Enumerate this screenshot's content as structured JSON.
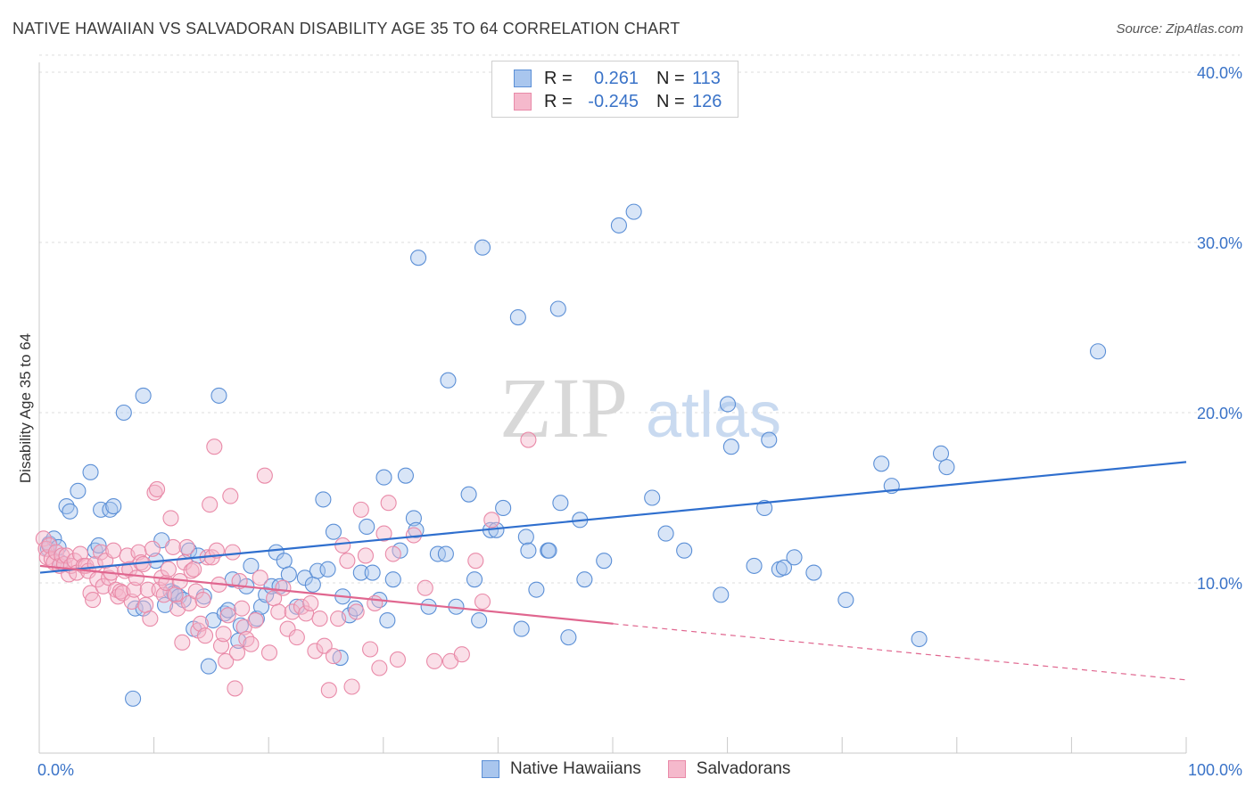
{
  "title": "NATIVE HAWAIIAN VS SALVADORAN DISABILITY AGE 35 TO 64 CORRELATION CHART",
  "source": "Source: ZipAtlas.com",
  "watermark": {
    "zip": "ZIP",
    "atlas": "atlas"
  },
  "legend_top": {
    "rows": [
      {
        "r_label": "R =",
        "r_value": "0.261",
        "n_label": "N =",
        "n_value": "113"
      },
      {
        "r_label": "R =",
        "r_value": "-0.245",
        "n_label": "N =",
        "n_value": "126"
      }
    ]
  },
  "legend_bottom": {
    "series1": "Native Hawaiians",
    "series2": "Salvadorans"
  },
  "colors": {
    "blue_fill": "#a9c6ee",
    "blue_stroke": "#5b8fd6",
    "blue_line": "#2f6fce",
    "pink_fill": "#f5b9cc",
    "pink_stroke": "#e98aa8",
    "pink_line": "#e0668f",
    "axis_text_blue": "#3a73c8",
    "grid": "#dddddd"
  },
  "chart_data": {
    "type": "scatter",
    "title": "NATIVE HAWAIIAN VS SALVADORAN DISABILITY AGE 35 TO 64 CORRELATION CHART",
    "xlabel": "",
    "ylabel": "Disability Age 35 to 64",
    "xlim": [
      0,
      100
    ],
    "ylim": [
      0,
      42
    ],
    "x_tick_labels": [
      "0.0%",
      "100.0%"
    ],
    "y_ticks": [
      10,
      20,
      30,
      40
    ],
    "y_tick_labels": [
      "10.0%",
      "20.0%",
      "30.0%",
      "40.0%"
    ],
    "series": [
      {
        "name": "Native Hawaiians",
        "r": 0.261,
        "n": 113,
        "trend": {
          "x0": 0,
          "y0": 10.6,
          "x1": 100,
          "y1": 17.1
        },
        "points": [
          [
            0.7,
            12
          ],
          [
            0.8,
            12.3
          ],
          [
            1.2,
            12.6
          ],
          [
            1.6,
            12.1
          ],
          [
            1.8,
            11.2
          ],
          [
            2.3,
            14.5
          ],
          [
            2.6,
            14.2
          ],
          [
            3.3,
            15.4
          ],
          [
            4.4,
            16.5
          ],
          [
            4.8,
            11.9
          ],
          [
            5.1,
            12.2
          ],
          [
            5.3,
            14.3
          ],
          [
            6.1,
            14.3
          ],
          [
            6.4,
            14.5
          ],
          [
            7.3,
            20
          ],
          [
            8.1,
            3.2
          ],
          [
            8.3,
            8.5
          ],
          [
            9.0,
            21
          ],
          [
            9.0,
            8.5
          ],
          [
            10.1,
            11.3
          ],
          [
            10.6,
            12.5
          ],
          [
            10.9,
            8.7
          ],
          [
            11.4,
            9.5
          ],
          [
            11.7,
            9.4
          ],
          [
            12.1,
            9.2
          ],
          [
            12.5,
            9.0
          ],
          [
            13,
            11.9
          ],
          [
            13.4,
            7.3
          ],
          [
            13.8,
            11.6
          ],
          [
            14.3,
            9.2
          ],
          [
            14.7,
            5.1
          ],
          [
            15.1,
            7.8
          ],
          [
            15.6,
            21
          ],
          [
            16.1,
            8.2
          ],
          [
            16.4,
            8.4
          ],
          [
            16.8,
            10.2
          ],
          [
            17.3,
            6.6
          ],
          [
            17.5,
            7.5
          ],
          [
            18,
            9.8
          ],
          [
            18.4,
            11.0
          ],
          [
            18.9,
            7.9
          ],
          [
            19.3,
            8.6
          ],
          [
            19.7,
            9.3
          ],
          [
            20.2,
            9.8
          ],
          [
            20.6,
            11.8
          ],
          [
            20.9,
            9.8
          ],
          [
            21.3,
            11.3
          ],
          [
            21.7,
            10.5
          ],
          [
            22.4,
            8.6
          ],
          [
            23.1,
            10.3
          ],
          [
            23.8,
            9.9
          ],
          [
            24.2,
            10.7
          ],
          [
            24.7,
            14.9
          ],
          [
            25.1,
            10.8
          ],
          [
            25.6,
            13.0
          ],
          [
            26.2,
            5.6
          ],
          [
            26.4,
            9.2
          ],
          [
            27.0,
            8.1
          ],
          [
            27.5,
            8.5
          ],
          [
            28.0,
            10.6
          ],
          [
            28.5,
            13.3
          ],
          [
            29.0,
            10.6
          ],
          [
            29.6,
            9.0
          ],
          [
            30.0,
            16.2
          ],
          [
            30.3,
            7.8
          ],
          [
            30.8,
            10.2
          ],
          [
            31.4,
            11.9
          ],
          [
            31.9,
            16.3
          ],
          [
            32.6,
            13.8
          ],
          [
            32.8,
            13.1
          ],
          [
            33.0,
            29.1
          ],
          [
            33.9,
            8.6
          ],
          [
            34.7,
            11.7
          ],
          [
            35.4,
            11.7
          ],
          [
            35.6,
            21.9
          ],
          [
            36.3,
            8.6
          ],
          [
            37.4,
            15.2
          ],
          [
            37.9,
            10.2
          ],
          [
            38.3,
            7.8
          ],
          [
            38.6,
            29.7
          ],
          [
            39.3,
            13.1
          ],
          [
            39.8,
            13.1
          ],
          [
            40.4,
            14.4
          ],
          [
            41.7,
            25.6
          ],
          [
            42.0,
            7.3
          ],
          [
            42.4,
            12.7
          ],
          [
            42.6,
            11.9
          ],
          [
            43.3,
            9.6
          ],
          [
            44.3,
            11.9
          ],
          [
            44.4,
            11.9
          ],
          [
            45.2,
            26.1
          ],
          [
            45.4,
            14.7
          ],
          [
            46.1,
            6.8
          ],
          [
            47.1,
            13.7
          ],
          [
            47.5,
            10.2
          ],
          [
            49.2,
            11.3
          ],
          [
            50.5,
            31.0
          ],
          [
            51.8,
            31.8
          ],
          [
            53.4,
            15.0
          ],
          [
            54.6,
            12.9
          ],
          [
            56.2,
            11.9
          ],
          [
            59.4,
            9.3
          ],
          [
            60.0,
            20.5
          ],
          [
            60.3,
            18.0
          ],
          [
            62.3,
            11.0
          ],
          [
            63.2,
            14.4
          ],
          [
            63.6,
            18.4
          ],
          [
            64.5,
            10.8
          ],
          [
            64.9,
            10.9
          ],
          [
            65.8,
            11.5
          ],
          [
            67.5,
            10.6
          ],
          [
            70.3,
            9.0
          ],
          [
            73.4,
            17.0
          ],
          [
            74.3,
            15.7
          ],
          [
            76.7,
            6.7
          ],
          [
            78.6,
            17.6
          ],
          [
            79.1,
            16.8
          ],
          [
            92.3,
            23.6
          ]
        ]
      },
      {
        "name": "Salvadorans",
        "r": -0.245,
        "n": 126,
        "trend": {
          "x0": 0,
          "y0": 11.0,
          "x1": 50,
          "y1": 7.6
        },
        "trend_dashed_extension": {
          "x0": 50,
          "y0": 7.6,
          "x1": 100,
          "y1": 4.3
        },
        "points": [
          [
            0.3,
            12.6
          ],
          [
            0.5,
            12.0
          ],
          [
            0.6,
            11.5
          ],
          [
            0.8,
            12.2
          ],
          [
            1.0,
            11.4
          ],
          [
            1.2,
            11.2
          ],
          [
            1.4,
            11.8
          ],
          [
            1.7,
            11.0
          ],
          [
            1.9,
            11.6
          ],
          [
            2.1,
            11.1
          ],
          [
            2.3,
            11.6
          ],
          [
            2.5,
            10.5
          ],
          [
            2.7,
            11.0
          ],
          [
            3.0,
            11.3
          ],
          [
            3.2,
            10.6
          ],
          [
            3.5,
            11.7
          ],
          [
            3.8,
            11.0
          ],
          [
            4.0,
            11.0
          ],
          [
            4.2,
            10.7
          ],
          [
            4.4,
            9.4
          ],
          [
            4.6,
            9.0
          ],
          [
            4.8,
            11.1
          ],
          [
            5.0,
            10.2
          ],
          [
            5.3,
            11.8
          ],
          [
            5.5,
            9.8
          ],
          [
            5.7,
            11.3
          ],
          [
            6.0,
            10.3
          ],
          [
            6.2,
            10.6
          ],
          [
            6.4,
            11.9
          ],
          [
            6.6,
            9.6
          ],
          [
            6.8,
            9.2
          ],
          [
            7.0,
            9.5
          ],
          [
            7.2,
            9.4
          ],
          [
            7.4,
            10.7
          ],
          [
            7.6,
            11.6
          ],
          [
            7.8,
            10.8
          ],
          [
            8.0,
            8.9
          ],
          [
            8.2,
            9.6
          ],
          [
            8.4,
            10.3
          ],
          [
            8.6,
            11.8
          ],
          [
            8.8,
            11.2
          ],
          [
            9.0,
            11.1
          ],
          [
            9.2,
            8.7
          ],
          [
            9.4,
            9.6
          ],
          [
            9.6,
            7.9
          ],
          [
            9.8,
            12.0
          ],
          [
            10.0,
            15.3
          ],
          [
            10.2,
            15.5
          ],
          [
            10.4,
            9.6
          ],
          [
            10.6,
            10.3
          ],
          [
            10.8,
            9.3
          ],
          [
            11.0,
            10.0
          ],
          [
            11.2,
            10.8
          ],
          [
            11.4,
            13.8
          ],
          [
            11.6,
            12.1
          ],
          [
            11.8,
            9.3
          ],
          [
            12.0,
            8.5
          ],
          [
            12.2,
            10.1
          ],
          [
            12.4,
            6.5
          ],
          [
            12.6,
            11.2
          ],
          [
            12.8,
            12.1
          ],
          [
            13.0,
            8.8
          ],
          [
            13.2,
            10.7
          ],
          [
            13.4,
            10.8
          ],
          [
            13.6,
            9.5
          ],
          [
            13.8,
            7.2
          ],
          [
            14.0,
            7.6
          ],
          [
            14.2,
            9.0
          ],
          [
            14.4,
            6.9
          ],
          [
            14.6,
            11.5
          ],
          [
            14.8,
            14.6
          ],
          [
            15.0,
            11.5
          ],
          [
            15.2,
            18.0
          ],
          [
            15.4,
            11.9
          ],
          [
            15.6,
            9.9
          ],
          [
            15.8,
            6.3
          ],
          [
            16.0,
            7.0
          ],
          [
            16.2,
            5.4
          ],
          [
            16.4,
            8.1
          ],
          [
            16.6,
            15.1
          ],
          [
            16.8,
            11.8
          ],
          [
            17.0,
            3.8
          ],
          [
            17.2,
            5.9
          ],
          [
            17.4,
            10.1
          ],
          [
            17.6,
            8.5
          ],
          [
            17.8,
            7.4
          ],
          [
            18.0,
            6.7
          ],
          [
            18.4,
            6.4
          ],
          [
            18.8,
            7.8
          ],
          [
            19.2,
            10.3
          ],
          [
            19.6,
            16.3
          ],
          [
            20.0,
            5.9
          ],
          [
            20.4,
            9.1
          ],
          [
            20.8,
            8.3
          ],
          [
            21.2,
            9.7
          ],
          [
            21.6,
            7.3
          ],
          [
            22.0,
            8.3
          ],
          [
            22.4,
            6.8
          ],
          [
            22.8,
            8.6
          ],
          [
            23.2,
            8.2
          ],
          [
            23.6,
            8.8
          ],
          [
            24.0,
            6.0
          ],
          [
            24.4,
            7.9
          ],
          [
            24.8,
            6.3
          ],
          [
            25.2,
            3.7
          ],
          [
            25.6,
            5.7
          ],
          [
            26.0,
            7.9
          ],
          [
            26.4,
            12.2
          ],
          [
            26.8,
            11.3
          ],
          [
            27.2,
            3.9
          ],
          [
            27.6,
            8.3
          ],
          [
            28.0,
            14.3
          ],
          [
            28.4,
            11.6
          ],
          [
            28.8,
            6.1
          ],
          [
            29.2,
            8.8
          ],
          [
            29.6,
            5.0
          ],
          [
            30.0,
            12.9
          ],
          [
            30.4,
            14.7
          ],
          [
            30.8,
            11.7
          ],
          [
            31.2,
            5.5
          ],
          [
            32.6,
            12.8
          ],
          [
            33.6,
            9.7
          ],
          [
            34.4,
            5.4
          ],
          [
            35.8,
            5.4
          ],
          [
            36.8,
            5.8
          ],
          [
            38.0,
            11.3
          ],
          [
            38.6,
            8.9
          ],
          [
            39.4,
            13.7
          ],
          [
            42.6,
            18.4
          ]
        ]
      }
    ]
  }
}
